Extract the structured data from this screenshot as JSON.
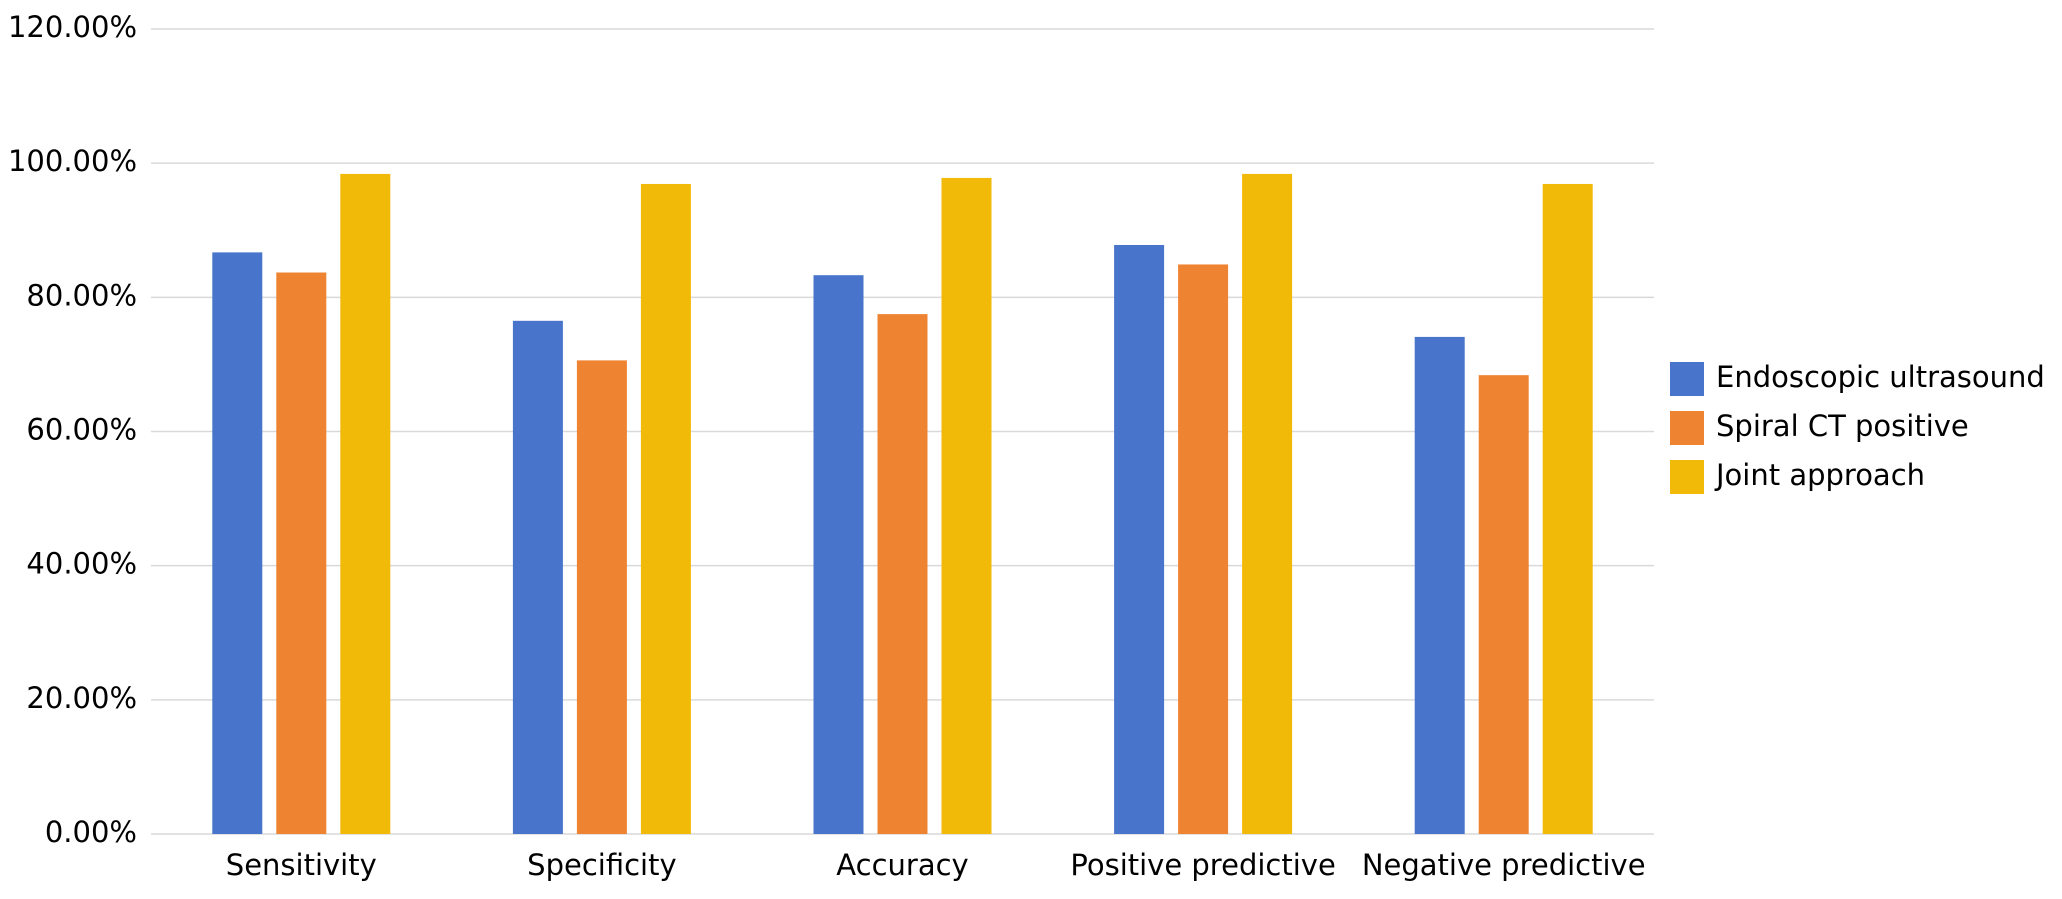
{
  "chart_data": {
    "type": "bar",
    "categories": [
      "Sensitivity",
      "Specificity",
      "Accuracy",
      "Positive predictive",
      "Negative predictive"
    ],
    "series": [
      {
        "name": "Endoscopic ultrasound",
        "color": "#4874cb",
        "values": [
          86.7,
          76.5,
          83.3,
          87.8,
          74.1
        ]
      },
      {
        "name": "Spiral CT positive",
        "color": "#ee8331",
        "values": [
          83.7,
          70.6,
          77.5,
          84.9,
          68.4
        ]
      },
      {
        "name": "Joint approach",
        "color": "#f2ba08",
        "values": [
          98.4,
          96.9,
          97.8,
          98.4,
          96.9
        ]
      }
    ],
    "ylim": [
      0,
      120
    ],
    "yticks": [
      {
        "value": 0,
        "label": "0.00%"
      },
      {
        "value": 20,
        "label": "20.00%"
      },
      {
        "value": 40,
        "label": "40.00%"
      },
      {
        "value": 60,
        "label": "60.00%"
      },
      {
        "value": 80,
        "label": "80.00%"
      },
      {
        "value": 100,
        "label": "100.00%"
      },
      {
        "value": 120,
        "label": "120.00%"
      }
    ],
    "grid": true,
    "legend": "right"
  }
}
